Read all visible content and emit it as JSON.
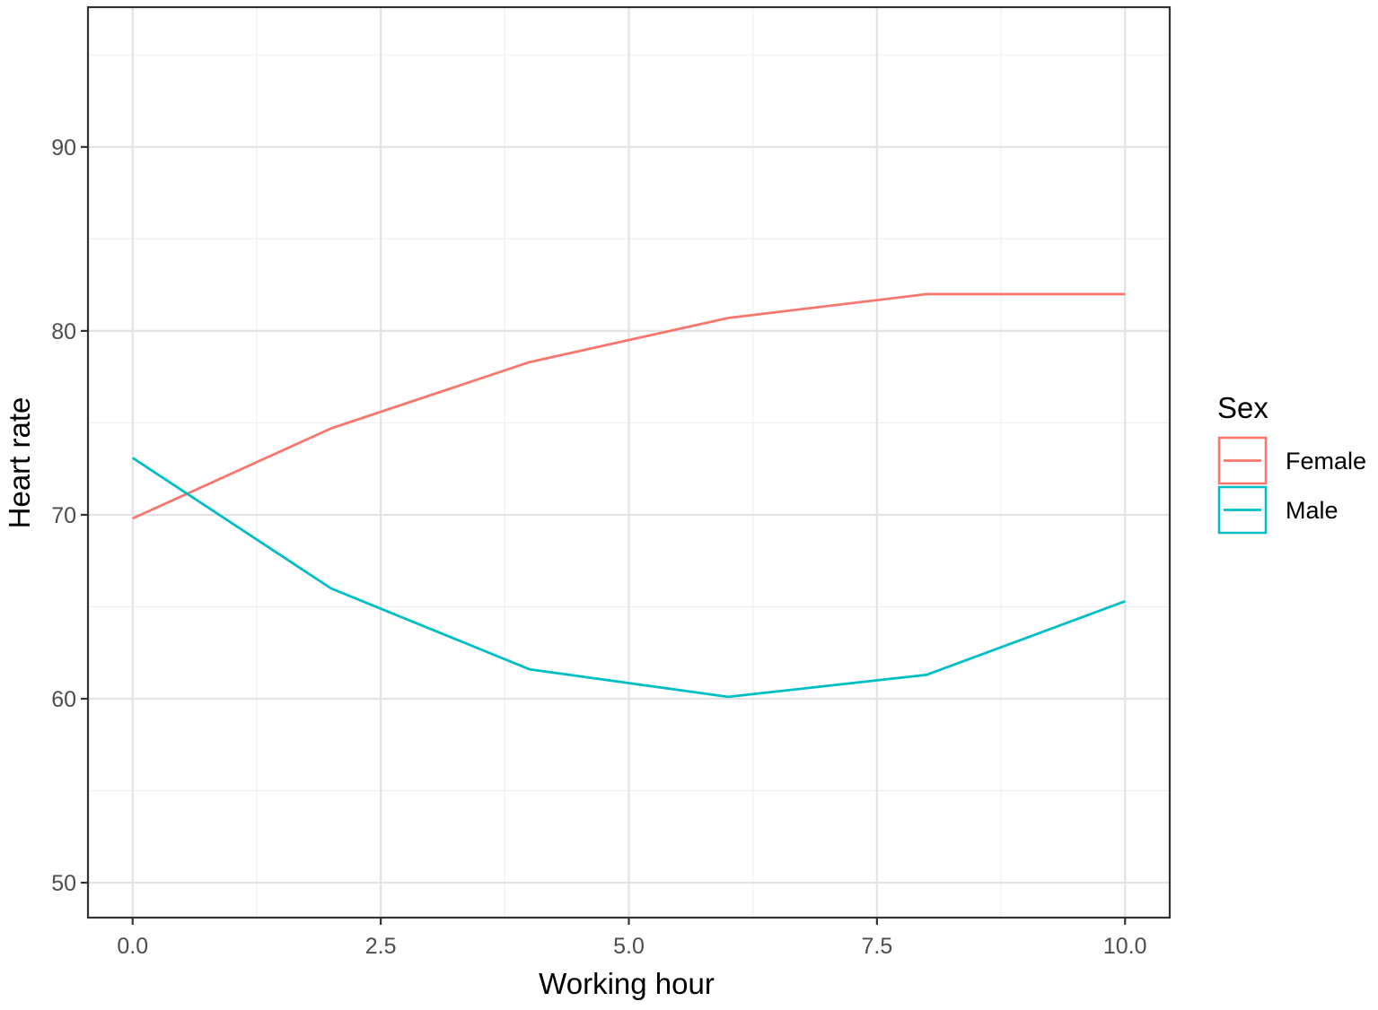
{
  "chart_data": {
    "type": "line",
    "xlabel": "Working hour",
    "ylabel": "Heart rate",
    "xlim": [
      -0.45,
      10.45
    ],
    "ylim": [
      48.1,
      97.6
    ],
    "x_ticks": [
      0.0,
      2.5,
      5.0,
      7.5,
      10.0
    ],
    "x_tick_labels": [
      "0.0",
      "2.5",
      "5.0",
      "7.5",
      "10.0"
    ],
    "y_ticks": [
      50,
      60,
      70,
      80,
      90
    ],
    "y_tick_labels": [
      "50",
      "60",
      "70",
      "80",
      "90"
    ],
    "grid": true,
    "legend": {
      "title": "Sex",
      "position": "right"
    },
    "series": [
      {
        "name": "Female",
        "color": "#F8766D",
        "x": [
          0,
          2,
          4,
          6,
          8,
          10
        ],
        "y": [
          69.8,
          74.7,
          78.3,
          80.7,
          82.0,
          82.0
        ]
      },
      {
        "name": "Male",
        "color": "#00BFC4",
        "x": [
          0,
          2,
          4,
          6,
          8,
          10
        ],
        "y": [
          73.1,
          66.0,
          61.6,
          60.1,
          61.3,
          65.3
        ]
      }
    ]
  }
}
